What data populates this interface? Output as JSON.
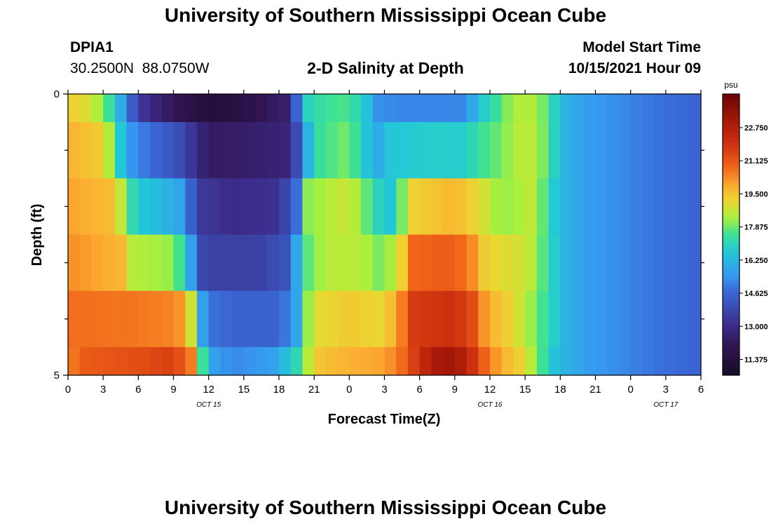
{
  "page": {
    "title": "University of Southern Mississippi Ocean Cube",
    "second_title": "University of Southern Mississippi Ocean Cube",
    "station_id": "DPIA1",
    "coordinates": "30.2500N  88.0750W",
    "chart_heading": "2-D Salinity at Depth",
    "model_start_label": "Model Start Time",
    "model_start_value": "10/15/2021 Hour 09"
  },
  "chart_data": {
    "type": "heatmap",
    "title": "2-D Salinity at Depth",
    "xlabel": "Forecast Time(Z)",
    "ylabel": "Depth (ft)",
    "x_ticks": [
      0,
      3,
      6,
      9,
      12,
      15,
      18,
      21,
      24,
      27,
      30,
      33,
      36,
      39,
      42,
      45,
      48,
      51,
      54
    ],
    "x_tick_labels": [
      "0",
      "3",
      "6",
      "9",
      "12",
      "15",
      "18",
      "21",
      "0",
      "3",
      "6",
      "9",
      "12",
      "15",
      "18",
      "21",
      "0",
      "3",
      "6"
    ],
    "x_range": [
      0,
      54
    ],
    "date_labels": [
      {
        "x": 12,
        "text": "OCT 15"
      },
      {
        "x": 36,
        "text": "OCT 16"
      },
      {
        "x": 51,
        "text": "OCT 17"
      }
    ],
    "y_range": [
      0,
      5
    ],
    "y_tick_labels": [
      "0",
      "5"
    ],
    "y_minor_ticks": [
      1,
      2,
      3,
      4
    ],
    "unit": "psu",
    "colorbar_min": 10.6,
    "colorbar_max": 24.4,
    "colorbar_ticks": [
      11.375,
      13.0,
      14.625,
      16.25,
      17.875,
      19.5,
      21.125,
      22.75
    ],
    "colorbar_tick_labels": [
      "11.375",
      "13.000",
      "14.625",
      "16.250",
      "17.875",
      "19.500",
      "21.125",
      "22.750"
    ],
    "rows": [
      {
        "depth_range": [
          0,
          0.5
        ],
        "keys": [
          [
            0,
            19.4
          ],
          [
            2,
            18.8
          ],
          [
            3.5,
            17.5
          ],
          [
            4.5,
            16.0
          ],
          [
            6,
            13.5
          ],
          [
            8,
            12.5
          ],
          [
            10,
            11.8
          ],
          [
            12,
            11.3
          ],
          [
            15,
            11.7
          ],
          [
            18.5,
            12.5
          ],
          [
            19.5,
            14.6
          ],
          [
            20.5,
            17.0
          ],
          [
            22,
            17.5
          ],
          [
            24,
            17.6
          ],
          [
            25.5,
            16.5
          ],
          [
            26,
            15.4
          ],
          [
            28,
            15.2
          ],
          [
            30,
            15.2
          ],
          [
            34,
            15.2
          ],
          [
            35,
            16.5
          ],
          [
            36.5,
            17.4
          ],
          [
            38,
            18.4
          ],
          [
            40,
            18.4
          ],
          [
            41,
            17.5
          ],
          [
            42,
            16.4
          ],
          [
            43,
            15.9
          ],
          [
            46,
            15.4
          ],
          [
            50,
            14.9
          ],
          [
            54,
            14.6
          ]
        ]
      },
      {
        "depth_range": [
          0.5,
          1.5
        ],
        "keys": [
          [
            0,
            19.8
          ],
          [
            3,
            19.3
          ],
          [
            4,
            17.6
          ],
          [
            4.7,
            16.3
          ],
          [
            5.5,
            15.4
          ],
          [
            7,
            14.8
          ],
          [
            9.5,
            14.0
          ],
          [
            11,
            13.0
          ],
          [
            12,
            12.3
          ],
          [
            16,
            12.5
          ],
          [
            19,
            12.8
          ],
          [
            20,
            15.0
          ],
          [
            21,
            17.3
          ],
          [
            24,
            18.0
          ],
          [
            25.5,
            16.5
          ],
          [
            26,
            15.4
          ],
          [
            27,
            16.6
          ],
          [
            30,
            16.8
          ],
          [
            34,
            16.8
          ],
          [
            35,
            17.4
          ],
          [
            36.5,
            17.8
          ],
          [
            38.5,
            18.5
          ],
          [
            40,
            18.5
          ],
          [
            41,
            17.5
          ],
          [
            42,
            16.4
          ],
          [
            43,
            15.9
          ],
          [
            46,
            15.4
          ],
          [
            50,
            14.9
          ],
          [
            54,
            14.6
          ]
        ]
      },
      {
        "depth_range": [
          1.5,
          2.5
        ],
        "keys": [
          [
            0,
            20.0
          ],
          [
            4,
            19.6
          ],
          [
            5,
            17.7
          ],
          [
            6,
            16.7
          ],
          [
            8,
            16.3
          ],
          [
            9.5,
            15.8
          ],
          [
            10.5,
            14.5
          ],
          [
            11.5,
            13.4
          ],
          [
            14,
            13.0
          ],
          [
            18,
            13.2
          ],
          [
            19.5,
            14.8
          ],
          [
            20.5,
            18.1
          ],
          [
            24,
            18.8
          ],
          [
            26,
            17.4
          ],
          [
            27,
            16.6
          ],
          [
            28,
            16.7
          ],
          [
            29,
            19.2
          ],
          [
            33,
            19.7
          ],
          [
            35,
            19.1
          ],
          [
            36.5,
            18.3
          ],
          [
            38,
            18.2
          ],
          [
            39.5,
            18.6
          ],
          [
            40.5,
            17.8
          ],
          [
            41.5,
            16.7
          ],
          [
            43,
            15.9
          ],
          [
            46,
            15.4
          ],
          [
            50,
            14.9
          ],
          [
            54,
            14.6
          ]
        ]
      },
      {
        "depth_range": [
          2.5,
          3.5
        ],
        "keys": [
          [
            0,
            20.3
          ],
          [
            4.5,
            19.7
          ],
          [
            5.5,
            18.5
          ],
          [
            8.5,
            18.2
          ],
          [
            10,
            17.2
          ],
          [
            10.5,
            15.7
          ],
          [
            11,
            14.0
          ],
          [
            12,
            13.6
          ],
          [
            16,
            13.6
          ],
          [
            19,
            14.2
          ],
          [
            20,
            17.5
          ],
          [
            22,
            18.5
          ],
          [
            25,
            18.5
          ],
          [
            27,
            17.8
          ],
          [
            28.5,
            19.3
          ],
          [
            29.5,
            20.8
          ],
          [
            33,
            21.0
          ],
          [
            34.5,
            20.3
          ],
          [
            35,
            19.5
          ],
          [
            37,
            19.0
          ],
          [
            39,
            18.8
          ],
          [
            40,
            18.2
          ],
          [
            41,
            17.2
          ],
          [
            42,
            16.4
          ],
          [
            43,
            15.9
          ],
          [
            46,
            15.4
          ],
          [
            50,
            14.9
          ],
          [
            54,
            14.6
          ]
        ]
      },
      {
        "depth_range": [
          3.5,
          4.5
        ],
        "keys": [
          [
            0,
            20.7
          ],
          [
            5,
            20.6
          ],
          [
            9,
            20.4
          ],
          [
            10,
            20.0
          ],
          [
            10.7,
            18.3
          ],
          [
            11.3,
            16.0
          ],
          [
            12,
            14.9
          ],
          [
            14,
            14.6
          ],
          [
            18,
            14.5
          ],
          [
            19.5,
            15.8
          ],
          [
            20,
            17.4
          ],
          [
            21,
            19.0
          ],
          [
            24,
            19.4
          ],
          [
            27,
            19.1
          ],
          [
            28.5,
            20.5
          ],
          [
            29.5,
            21.7
          ],
          [
            33,
            22.0
          ],
          [
            34.5,
            21.3
          ],
          [
            35.5,
            20.2
          ],
          [
            36.5,
            19.6
          ],
          [
            37.5,
            19.3
          ],
          [
            38.5,
            18.8
          ],
          [
            40,
            17.9
          ],
          [
            41,
            17.2
          ],
          [
            42,
            16.4
          ],
          [
            43,
            15.9
          ],
          [
            46,
            15.4
          ],
          [
            50,
            14.9
          ],
          [
            54,
            14.6
          ]
        ]
      },
      {
        "depth_range": [
          4.5,
          5.0
        ],
        "keys": [
          [
            0,
            20.4
          ],
          [
            1.5,
            21.0
          ],
          [
            6,
            21.3
          ],
          [
            9,
            21.6
          ],
          [
            10.5,
            20.5
          ],
          [
            11,
            18.5
          ],
          [
            11.7,
            17.0
          ],
          [
            12.5,
            15.7
          ],
          [
            14,
            15.2
          ],
          [
            17.5,
            15.7
          ],
          [
            19,
            16.7
          ],
          [
            20,
            17.6
          ],
          [
            21,
            19.4
          ],
          [
            24,
            19.8
          ],
          [
            27,
            20.0
          ],
          [
            29,
            21.0
          ],
          [
            30,
            22.2
          ],
          [
            31.5,
            23.0
          ],
          [
            33,
            23.2
          ],
          [
            34,
            22.5
          ],
          [
            35.5,
            20.9
          ],
          [
            37,
            19.8
          ],
          [
            38.5,
            19.3
          ],
          [
            39.5,
            18.5
          ],
          [
            40.5,
            17.5
          ],
          [
            41.5,
            16.5
          ],
          [
            43,
            15.9
          ],
          [
            46,
            15.4
          ],
          [
            50,
            14.9
          ],
          [
            54,
            14.6
          ]
        ]
      }
    ]
  }
}
